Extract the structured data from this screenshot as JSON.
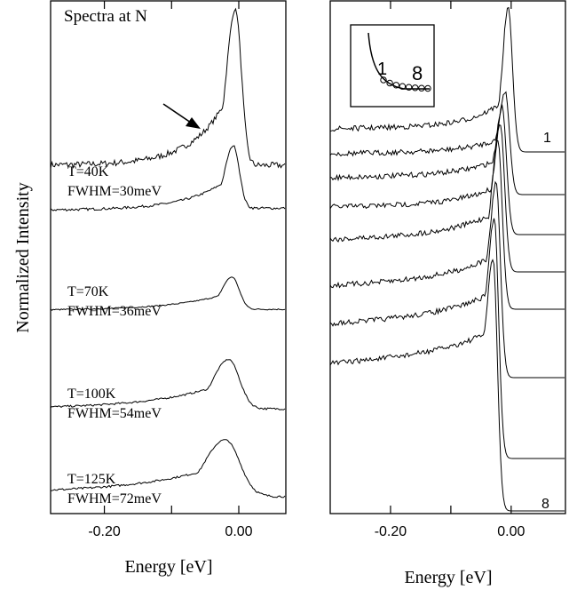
{
  "chart_data": [
    {
      "type": "line",
      "panel": "left",
      "title": "Spectra at N",
      "xlabel": "Energy [eV]",
      "ylabel": "Normalized Intensity",
      "xlim": [
        -0.28,
        0.07
      ],
      "xticks": [
        -0.2,
        -0.1,
        0.0
      ],
      "xtick_labels": [
        "-0.20",
        "",
        "0.00"
      ],
      "grid": false,
      "annotations": [
        {
          "text": "arrow",
          "points_to_x": -0.05
        }
      ],
      "series": [
        {
          "name": "",
          "label_lines": [],
          "peak_x": -0.005,
          "fwhm": 0.03,
          "tail": 0.05,
          "base": 0.0,
          "after": 0.0,
          "peak": 1.0
        },
        {
          "name": "T=40K FWHM=30meV",
          "label_lines": [
            "T=40K",
            "FWHM=30meV"
          ],
          "peak_x": -0.008,
          "fwhm": 0.03,
          "tail": 0.06,
          "base": 0.02,
          "after": 0.05,
          "peak": 0.95
        },
        {
          "name": "T=70K FWHM=36meV",
          "label_lines": [
            "T=70K",
            "FWHM=36meV"
          ],
          "peak_x": -0.01,
          "fwhm": 0.036,
          "tail": 0.08,
          "base": 0.02,
          "after": 0.05,
          "peak": 0.85
        },
        {
          "name": "T=100K FWHM=54meV",
          "label_lines": [
            "T=100K",
            "FWHM=54meV"
          ],
          "peak_x": -0.015,
          "fwhm": 0.054,
          "tail": 0.1,
          "base": 0.05,
          "after": 0.05,
          "peak": 0.75
        },
        {
          "name": "T=125K FWHM=72meV",
          "label_lines": [
            "T=125K",
            "FWHM=72meV"
          ],
          "peak_x": -0.02,
          "fwhm": 0.072,
          "tail": 0.12,
          "base": 0.1,
          "after": 0.05,
          "peak": 0.6
        }
      ]
    },
    {
      "type": "line",
      "panel": "right",
      "xlabel": "Energy [eV]",
      "xlim": [
        -0.3,
        0.09
      ],
      "xticks": [
        -0.2,
        -0.1,
        0.0
      ],
      "xtick_labels": [
        "-0.20",
        "",
        "0.00"
      ],
      "grid": false,
      "curve_labels": {
        "first": "1",
        "last": "8"
      },
      "inset": {
        "labels": [
          "1",
          "8"
        ],
        "points": 8
      },
      "series": [
        {
          "name": "1",
          "peak_x": -0.005,
          "height": 0.3,
          "tail": 0.05,
          "base": 0.05,
          "after": 0.05
        },
        {
          "name": "",
          "peak_x": -0.01,
          "height": 0.45,
          "tail": 0.05,
          "base": 0.05,
          "after": 0.05
        },
        {
          "name": "",
          "peak_x": -0.015,
          "height": 0.6,
          "tail": 0.06,
          "base": 0.05,
          "after": 0.05
        },
        {
          "name": "",
          "peak_x": -0.018,
          "height": 0.75,
          "tail": 0.06,
          "base": 0.05,
          "after": 0.05
        },
        {
          "name": "",
          "peak_x": -0.022,
          "height": 0.9,
          "tail": 0.07,
          "base": 0.1,
          "after": 0.05
        },
        {
          "name": "",
          "peak_x": -0.025,
          "height": 1.0,
          "tail": 0.07,
          "base": 0.15,
          "after": 0.05
        },
        {
          "name": "",
          "peak_x": -0.028,
          "height": 1.05,
          "tail": 0.08,
          "base": 0.15,
          "after": 0.05
        },
        {
          "name": "8",
          "peak_x": -0.03,
          "height": 1.1,
          "tail": 0.08,
          "base": 0.2,
          "after": 0.0
        }
      ]
    }
  ]
}
